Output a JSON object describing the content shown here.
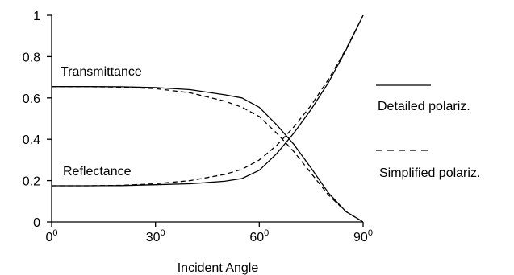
{
  "chart_data": {
    "type": "line",
    "xlabel": "Incident Angle",
    "ylabel": "",
    "xlim": [
      0,
      90
    ],
    "ylim": [
      0,
      1
    ],
    "x_ticks": [
      {
        "value": 0,
        "base": "0",
        "sup": "0"
      },
      {
        "value": 30,
        "base": "30",
        "sup": "0"
      },
      {
        "value": 60,
        "base": "60",
        "sup": "0"
      },
      {
        "value": 90,
        "base": "90",
        "sup": "0"
      }
    ],
    "y_ticks": [
      "0",
      "0.2",
      "0.4",
      "0.6",
      "0.8",
      "1"
    ],
    "grid": false,
    "annotations": {
      "transmittance": "Transmittance",
      "reflectance": "Reflectance"
    },
    "legend": {
      "position": "right",
      "entries": [
        {
          "label": "Detailed polariz.",
          "style": "solid"
        },
        {
          "label": "Simplified polariz.",
          "style": "dashed"
        }
      ]
    },
    "series": [
      {
        "group": "Transmittance",
        "style": "solid",
        "x": [
          0,
          10,
          20,
          30,
          40,
          50,
          55,
          60,
          65,
          70,
          75,
          80,
          85,
          90
        ],
        "y": [
          0.655,
          0.655,
          0.654,
          0.65,
          0.64,
          0.615,
          0.6,
          0.555,
          0.47,
          0.375,
          0.26,
          0.14,
          0.05,
          0.0
        ]
      },
      {
        "group": "Transmittance",
        "style": "dashed",
        "x": [
          0,
          10,
          20,
          30,
          40,
          50,
          55,
          60,
          65,
          70,
          75,
          80,
          85,
          90
        ],
        "y": [
          0.655,
          0.655,
          0.652,
          0.645,
          0.625,
          0.585,
          0.555,
          0.51,
          0.43,
          0.34,
          0.235,
          0.13,
          0.05,
          0.0
        ]
      },
      {
        "group": "Reflectance",
        "style": "solid",
        "x": [
          0,
          10,
          20,
          30,
          40,
          50,
          55,
          60,
          65,
          70,
          75,
          80,
          85,
          90
        ],
        "y": [
          0.175,
          0.175,
          0.176,
          0.18,
          0.185,
          0.197,
          0.21,
          0.25,
          0.33,
          0.43,
          0.545,
          0.675,
          0.83,
          1.0
        ]
      },
      {
        "group": "Reflectance",
        "style": "dashed",
        "x": [
          0,
          10,
          20,
          30,
          40,
          50,
          55,
          60,
          65,
          70,
          75,
          80,
          85,
          90
        ],
        "y": [
          0.175,
          0.175,
          0.177,
          0.185,
          0.2,
          0.23,
          0.255,
          0.3,
          0.37,
          0.46,
          0.565,
          0.69,
          0.835,
          1.0
        ]
      }
    ]
  }
}
